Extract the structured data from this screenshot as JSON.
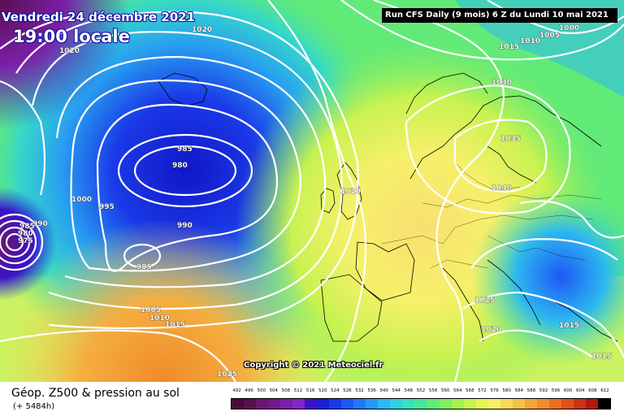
{
  "header": {
    "date": "Vendredi 24 décembre 2021",
    "hour": "19:00 locale",
    "run": "Run CFS Daily (9 mois) 6 Z du Lundi 10 mai 2021"
  },
  "map": {
    "copyright": "Copyright © 2021 Meteociel.fr",
    "pressure_labels": [
      "1020",
      "1020",
      "1000",
      "1005",
      "1010",
      "1015",
      "1030",
      "1035",
      "1040",
      "985",
      "980",
      "995",
      "1000",
      "990",
      "985",
      "990",
      "985",
      "980",
      "975",
      "1005",
      "1010",
      "1015",
      "1025",
      "1020",
      "1025",
      "1020",
      "1015",
      "1015"
    ],
    "colors": {
      "ocean_low": "#0a1fd0",
      "mid": "#1fb8e6",
      "green": "#6ee06a",
      "yellow": "#f5f06a",
      "orange": "#f29a2e"
    }
  },
  "legend": {
    "title": "Géop. Z500 & pression au sol",
    "subtitle": "(+ 5484h)",
    "values": [
      "492",
      "496",
      "500",
      "504",
      "508",
      "512",
      "516",
      "520",
      "524",
      "528",
      "532",
      "536",
      "540",
      "544",
      "548",
      "552",
      "556",
      "560",
      "564",
      "568",
      "572",
      "576",
      "580",
      "584",
      "588",
      "592",
      "596",
      "600",
      "604",
      "608",
      "612"
    ],
    "colors": [
      "#4a0a3a",
      "#5a0f50",
      "#6a1570",
      "#72188a",
      "#7b1fa8",
      "#8226c6",
      "#3a14c8",
      "#1820d8",
      "#1a38ea",
      "#1e58f4",
      "#2278f8",
      "#2898f8",
      "#2cb8f0",
      "#30d0e0",
      "#38e0c0",
      "#48e69a",
      "#62ea78",
      "#82ee60",
      "#a6f050",
      "#c8f250",
      "#e6f45a",
      "#f6ee6c",
      "#f6d85e",
      "#f4c04e",
      "#f2a63c",
      "#ee8c2e",
      "#ea6e22",
      "#e0501a",
      "#cc3214",
      "#b01810",
      "#000000"
    ]
  }
}
